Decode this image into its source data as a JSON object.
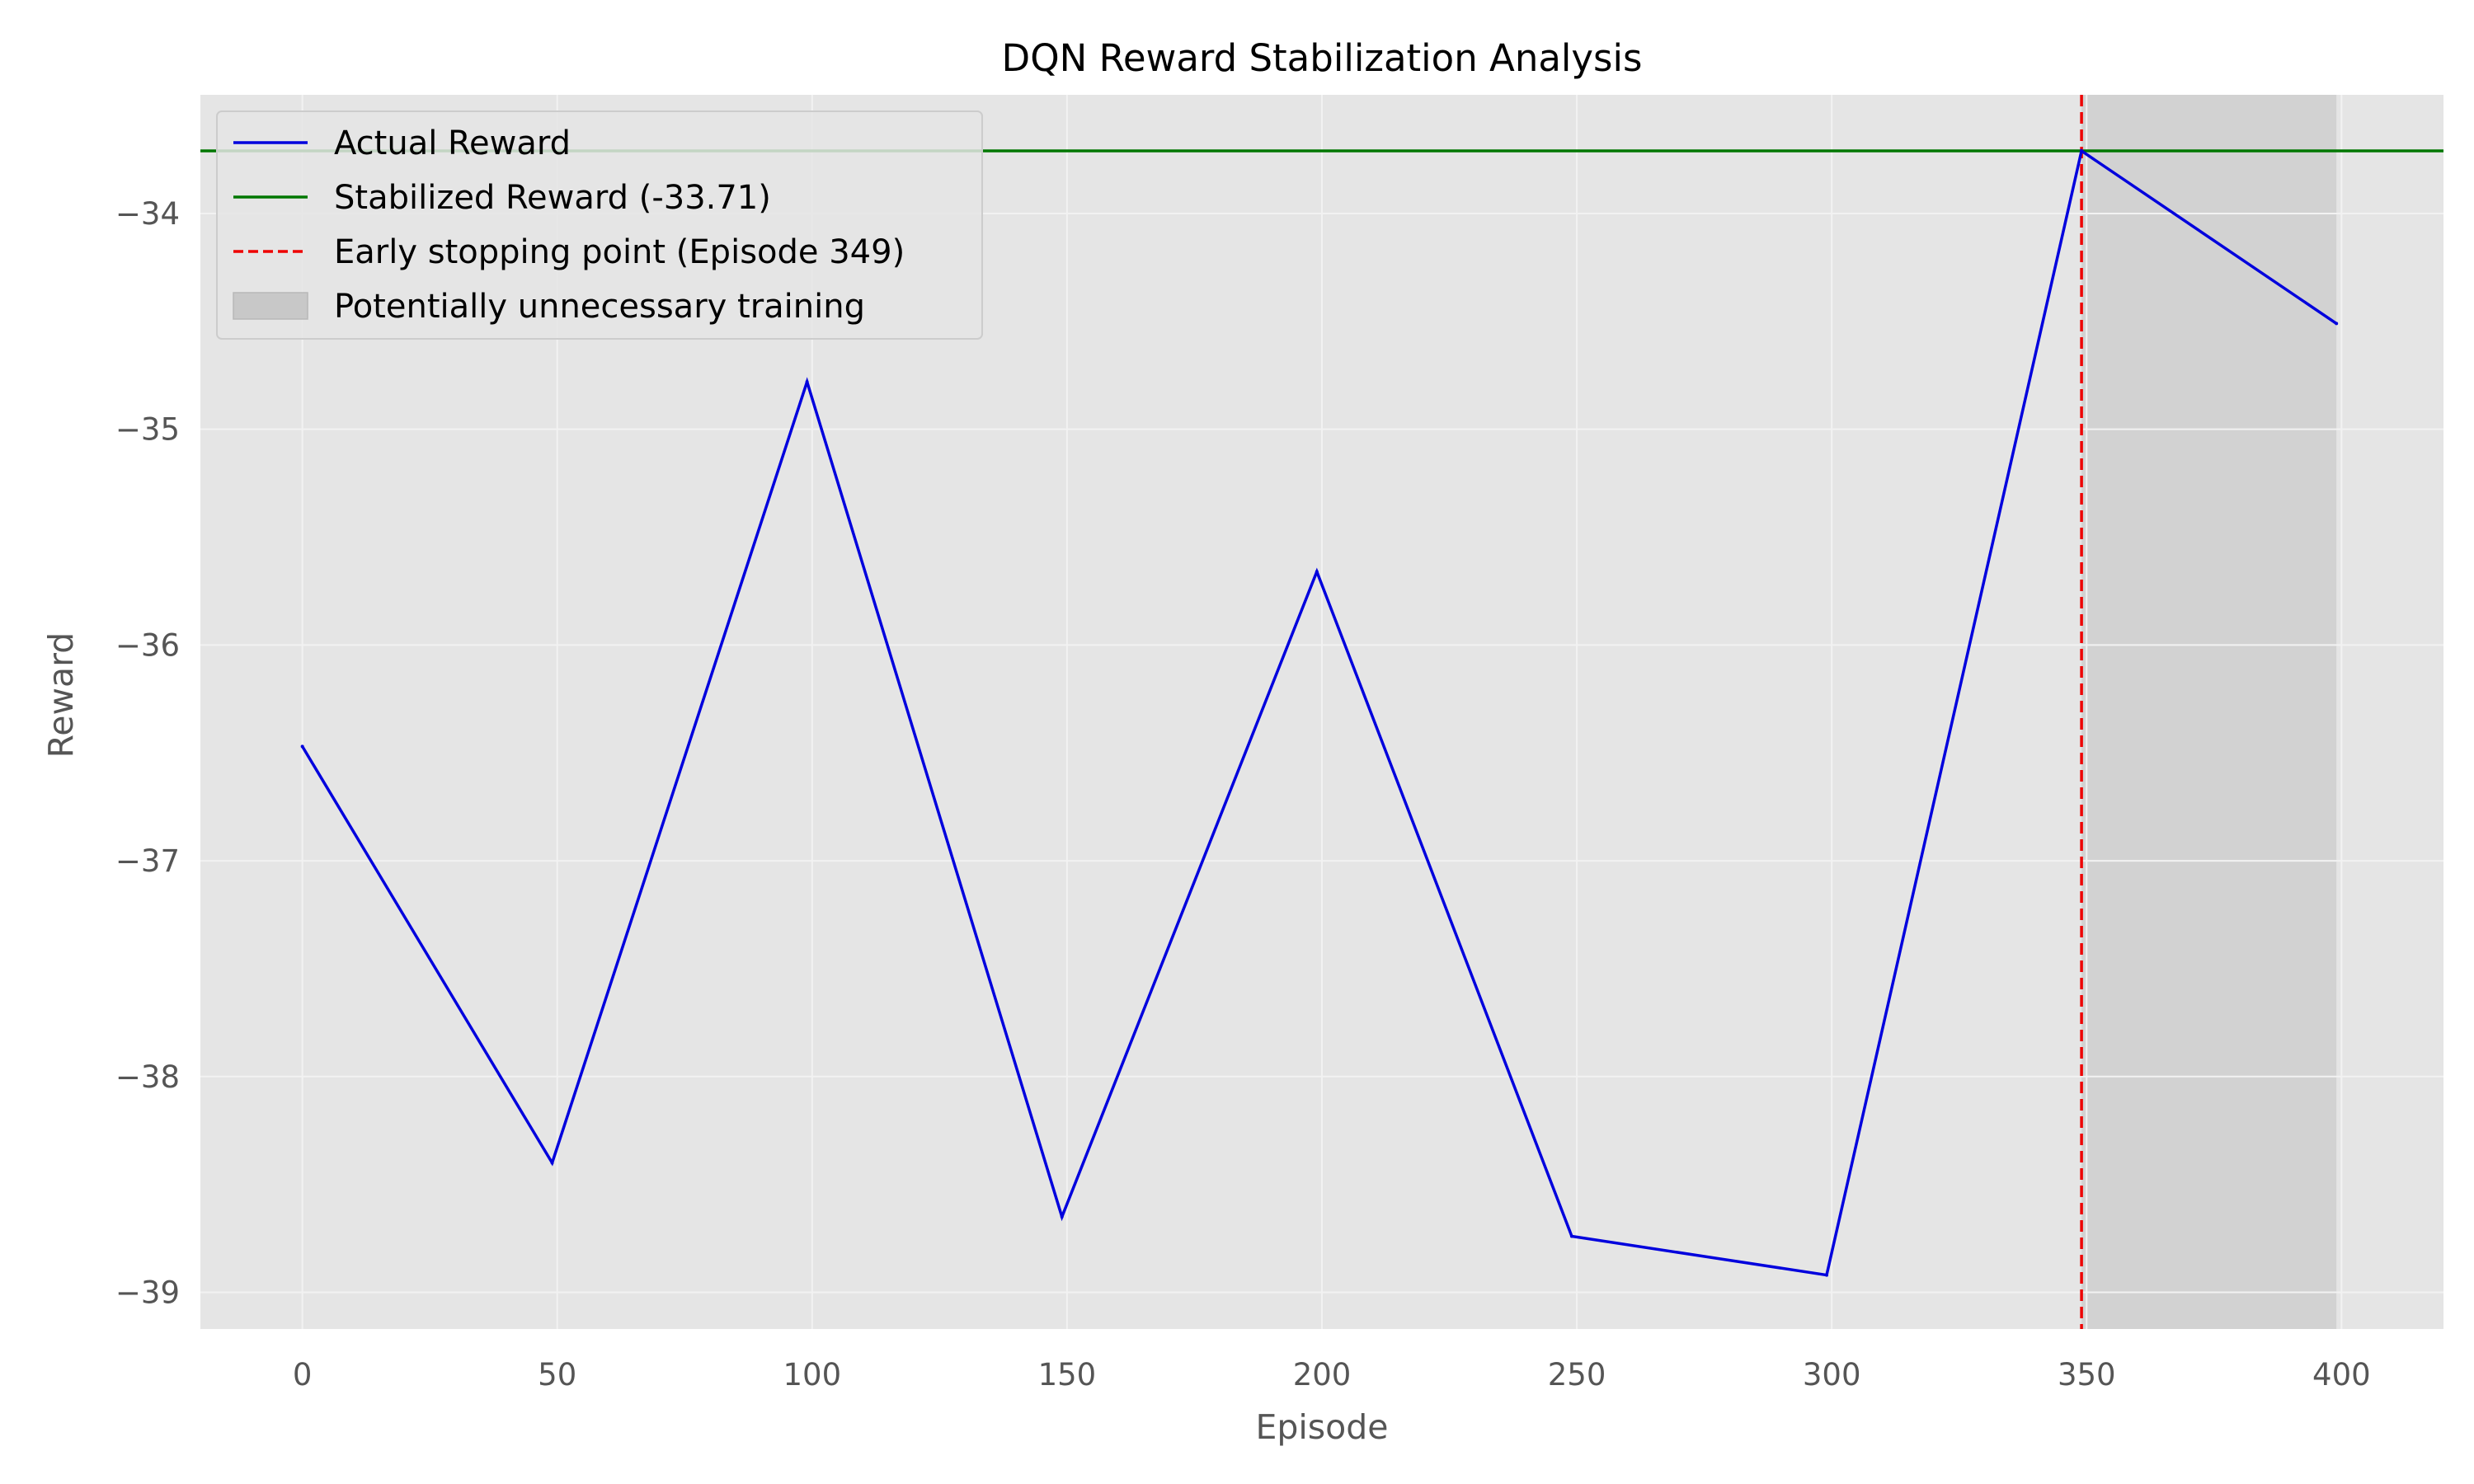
{
  "chart_data": {
    "type": "line",
    "title": "DQN Reward Stabilization Analysis",
    "xlabel": "Episode",
    "ylabel": "Reward",
    "xlim": [
      -20,
      420
    ],
    "ylim": [
      -39.17,
      -33.45
    ],
    "x_ticks": [
      0,
      50,
      100,
      150,
      200,
      250,
      300,
      350,
      400
    ],
    "y_ticks": [
      -39,
      -38,
      -37,
      -36,
      -35,
      -34
    ],
    "x_tick_labels": [
      "0",
      "50",
      "100",
      "150",
      "200",
      "250",
      "300",
      "350",
      "400"
    ],
    "y_tick_labels": [
      "−39",
      "−38",
      "−37",
      "−36",
      "−35",
      "−34"
    ],
    "grid": true,
    "legend_position": "top-left",
    "series": [
      {
        "name": "Actual Reward",
        "color": "#0000dd",
        "x": [
          0,
          49,
          99,
          149,
          199,
          249,
          299,
          349,
          399
        ],
        "y": [
          -36.47,
          -38.4,
          -34.78,
          -38.65,
          -35.66,
          -38.74,
          -38.92,
          -33.71,
          -34.51
        ]
      }
    ],
    "reference_lines": [
      {
        "name": "Stabilized Reward (-33.71)",
        "orientation": "horizontal",
        "value": -33.71,
        "color": "#007700",
        "style": "solid"
      },
      {
        "name": "Early stopping point (Episode 349)",
        "orientation": "vertical",
        "value": 349,
        "color": "#ee0000",
        "style": "dashed"
      }
    ],
    "shaded_regions": [
      {
        "name": "Potentially unnecessary training",
        "x_start": 349,
        "x_end": 399,
        "color": "#c8c8c8"
      }
    ],
    "colors": {
      "plot_background": "#e5e5e5",
      "grid": "#f2f2f2",
      "legend_border": "#cccccc"
    }
  }
}
